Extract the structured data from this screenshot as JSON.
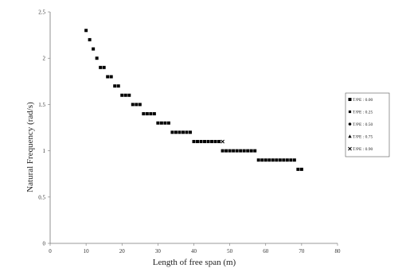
{
  "chart_data": {
    "type": "scatter",
    "xlabel": "Length of free span (m)",
    "ylabel": "Natural Frequency (rad/s)",
    "xlim": [
      0,
      80
    ],
    "ylim": [
      0,
      2.5
    ],
    "xticks": [
      0,
      10,
      20,
      30,
      40,
      50,
      60,
      70,
      80
    ],
    "yticks": [
      0,
      0.5,
      1,
      1.5,
      2,
      2.5
    ],
    "grid": false,
    "legend": "right",
    "marker_color": "#000000",
    "series": [
      {
        "name": "T/PE : 0.00",
        "marker": "square",
        "x": [
          10,
          11,
          12,
          13,
          14,
          15,
          16,
          17,
          18,
          19,
          20,
          21,
          22,
          23,
          24,
          25,
          26,
          27,
          28,
          29,
          30,
          31,
          32,
          33,
          34,
          35,
          36,
          37,
          38,
          39,
          40,
          41,
          42,
          43,
          44,
          45,
          46,
          47,
          48,
          49,
          50,
          51,
          52,
          53,
          54,
          55,
          56,
          57,
          58,
          59,
          60,
          61,
          62,
          63,
          64,
          65,
          66,
          67,
          68,
          69,
          70
        ],
        "y": [
          2.3,
          2.2,
          2.1,
          2.0,
          1.9,
          1.9,
          1.8,
          1.8,
          1.7,
          1.7,
          1.6,
          1.6,
          1.6,
          1.5,
          1.5,
          1.5,
          1.4,
          1.4,
          1.4,
          1.4,
          1.3,
          1.3,
          1.3,
          1.3,
          1.2,
          1.2,
          1.2,
          1.2,
          1.2,
          1.2,
          1.1,
          1.1,
          1.1,
          1.1,
          1.1,
          1.1,
          1.1,
          1.1,
          1.0,
          1.0,
          1.0,
          1.0,
          1.0,
          1.0,
          1.0,
          1.0,
          1.0,
          1.0,
          0.9,
          0.9,
          0.9,
          0.9,
          0.9,
          0.9,
          0.9,
          0.9,
          0.9,
          0.9,
          0.9,
          0.8,
          0.8
        ]
      },
      {
        "name": "T/PE : 0.25",
        "marker": "square-small",
        "x": [],
        "y": []
      },
      {
        "name": "T/PE : 0.50",
        "marker": "circle",
        "x": [],
        "y": []
      },
      {
        "name": "T/PE : 0.75",
        "marker": "triangle",
        "x": [],
        "y": []
      },
      {
        "name": "T/PE : 0.90",
        "marker": "cross",
        "x": [
          48
        ],
        "y": [
          1.1
        ]
      }
    ]
  }
}
